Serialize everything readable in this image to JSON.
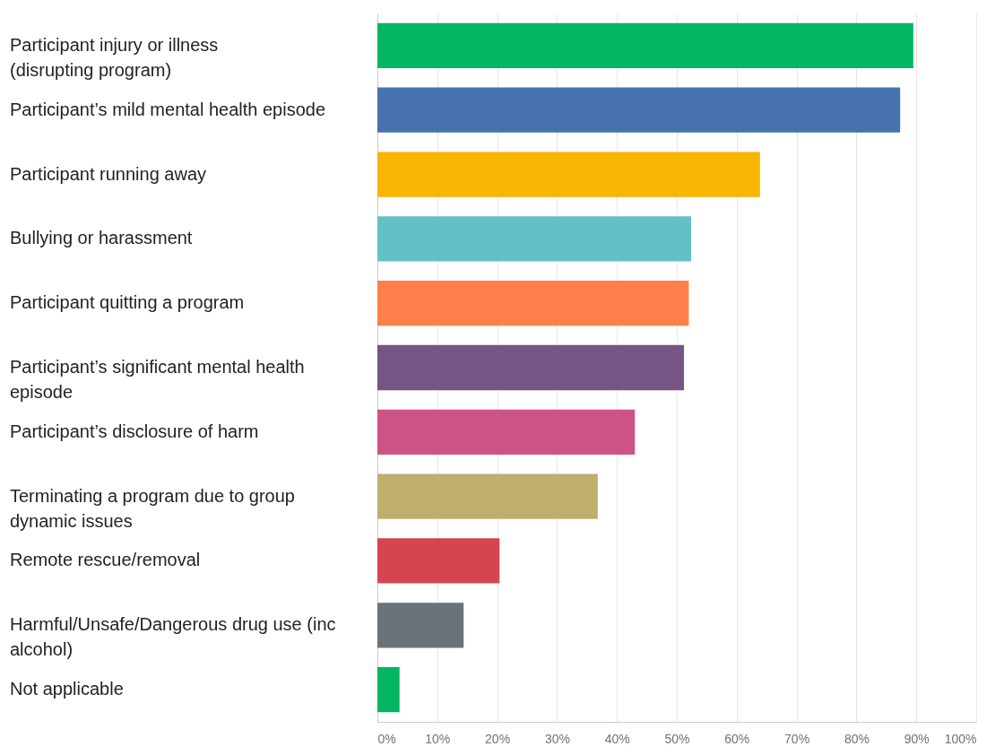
{
  "chart_data": {
    "type": "bar",
    "orientation": "horizontal",
    "categories": [
      "Participant injury or illness (disrupting program)",
      "Participant’s mild mental health episode",
      "Participant running away",
      "Bullying or harassment",
      "Participant quitting a program",
      "Participant’s significant mental health episode",
      "Participant’s disclosure of harm",
      "Terminating a program due to group dynamic issues",
      "Remote rescue/removal",
      "Harmful/Unsafe/Dangerous drug use (inc alcohol)",
      "Not applicable"
    ],
    "values": [
      89.5,
      87.3,
      63.9,
      52.4,
      52.0,
      51.2,
      43.0,
      36.8,
      20.4,
      14.4,
      3.7
    ],
    "colors": [
      "#02b663",
      "#4672ad",
      "#f8b503",
      "#62c1c6",
      "#fe7f49",
      "#735586",
      "#cc5484",
      "#c0ae6f",
      "#d64451",
      "#6b737a",
      "#02b663"
    ],
    "xlim": [
      0,
      100
    ],
    "xticks": [
      {
        "value": 0,
        "label": "0%"
      },
      {
        "value": 10,
        "label": "10%"
      },
      {
        "value": 20,
        "label": "20%"
      },
      {
        "value": 30,
        "label": "30%"
      },
      {
        "value": 40,
        "label": "40%"
      },
      {
        "value": 50,
        "label": "50%"
      },
      {
        "value": 60,
        "label": "60%"
      },
      {
        "value": 70,
        "label": "70%"
      },
      {
        "value": 80,
        "label": "80%"
      },
      {
        "value": 90,
        "label": "90%"
      },
      {
        "value": 100,
        "label": "100%"
      }
    ],
    "grid": "x"
  }
}
